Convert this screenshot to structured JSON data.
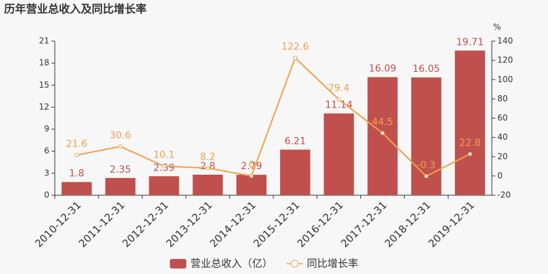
{
  "chart_data": {
    "type": "bar",
    "title": "历年营业总收入及同比增长率",
    "y2label": "%",
    "categories": [
      "2010-12-31",
      "2011-12-31",
      "2012-12-31",
      "2013-12-31",
      "2014-12-31",
      "2015-12-31",
      "2016-12-31",
      "2017-12-31",
      "2018-12-31",
      "2019-12-31"
    ],
    "series": [
      {
        "name": "营业总收入（亿）",
        "type": "bar",
        "color": "#c0504d",
        "values": [
          1.8,
          2.35,
          2.59,
          2.8,
          2.79,
          6.21,
          11.14,
          16.09,
          16.05,
          19.71
        ]
      },
      {
        "name": "同比增长率",
        "type": "line",
        "axis": "y2",
        "color": "#f0a04b",
        "values": [
          21.6,
          30.6,
          10.1,
          8.2,
          0,
          122.6,
          79.4,
          44.5,
          -0.3,
          22.8
        ]
      }
    ],
    "ylim": [
      0,
      21
    ],
    "yticks": [
      0,
      3,
      6,
      9,
      12,
      15,
      18,
      21
    ],
    "y2lim": [
      -20,
      140
    ],
    "y2ticks": [
      -20,
      0,
      20,
      40,
      60,
      80,
      100,
      120,
      140
    ]
  }
}
